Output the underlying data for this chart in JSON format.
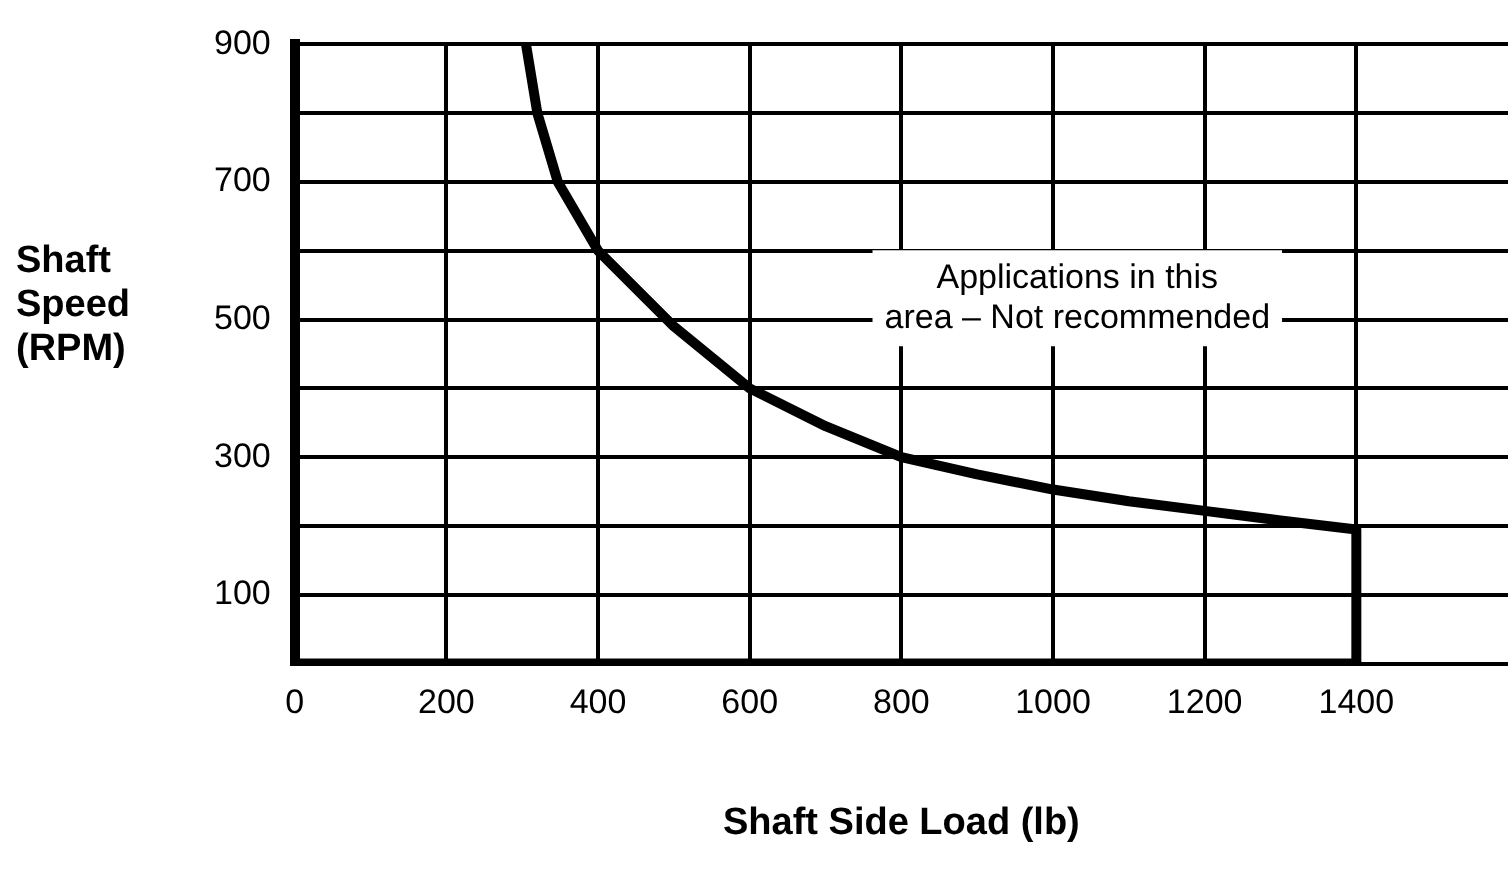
{
  "chart_data": {
    "type": "line",
    "xlabel": "Shaft Side Load (lb)",
    "ylabel": "Shaft\nSpeed\n(RPM)",
    "x": [
      0,
      0,
      1400,
      1400,
      1300,
      1200,
      1100,
      1000,
      900,
      800,
      700,
      600,
      500,
      400,
      347,
      320,
      305
    ],
    "series": [
      {
        "color": "#000000",
        "values": [
          900,
          0,
          0,
          195,
          208,
          222,
          236,
          253,
          275,
          300,
          345,
          400,
          490,
          600,
          700,
          800,
          900
        ]
      }
    ],
    "xlim": [
      0,
      1600
    ],
    "ylim": [
      0,
      900
    ],
    "xticks": [
      0,
      200,
      400,
      600,
      800,
      1000,
      1200,
      1400
    ],
    "yticks": [
      100,
      {
        "value": 200,
        "label": null
      },
      300,
      {
        "value": 400,
        "label": null
      },
      500,
      {
        "value": 600,
        "label": null
      },
      700,
      {
        "value": 800,
        "label": null
      },
      900
    ],
    "annotations": [
      "Applications in this\narea – Not recommended"
    ],
    "grid": true,
    "legend": false,
    "marker": "none",
    "line_style": "solid"
  }
}
